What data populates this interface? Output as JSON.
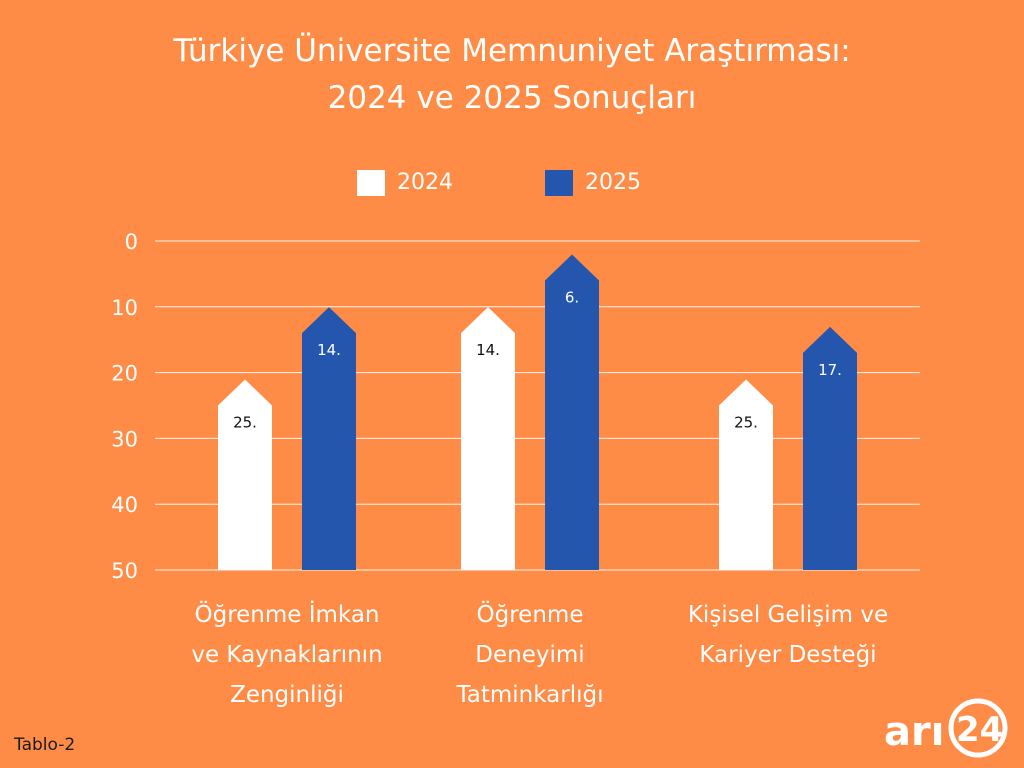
{
  "title_line1": "Türkiye Üniversite Memnuniyet Araştırması:",
  "title_line2": "2024 ve 2025 Sonuçları",
  "footer": "Tablo-2",
  "logo_text": "arı24",
  "colors": {
    "background": "#FF8C46",
    "series_2024": "#FFFFFF",
    "series_2025": "#2456AE",
    "grid": "#FFFFFF"
  },
  "chart_data": {
    "type": "bar",
    "title": "Türkiye Üniversite Memnuniyet Araştırması: 2024 ve 2025 Sonuçları",
    "categories": [
      [
        "Öğrenme İmkan",
        "ve Kaynaklarının",
        "Zenginliği"
      ],
      [
        "Öğrenme",
        "Deneyimi",
        "Tatminkarlığı"
      ],
      [
        "Kişisel Gelişim ve",
        "Kariyer Desteği"
      ]
    ],
    "series": [
      {
        "name": "2024",
        "values": [
          25,
          14,
          25
        ],
        "labels": [
          "25.",
          "14.",
          "25."
        ]
      },
      {
        "name": "2025",
        "values": [
          14,
          6,
          17
        ],
        "labels": [
          "14.",
          "6.",
          "17."
        ]
      }
    ],
    "y_axis": {
      "ticks": [
        "0",
        "10",
        "20",
        "30",
        "40",
        "50"
      ],
      "ylim": [
        0,
        50
      ],
      "inverted": true
    },
    "grid": true,
    "legend_position": "top"
  }
}
